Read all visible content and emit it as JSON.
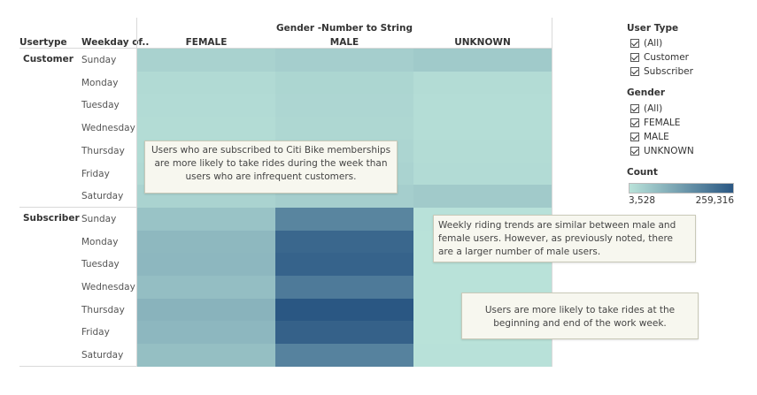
{
  "headers": {
    "col1": "Usertype",
    "col2": "Weekday of..",
    "gender_title": "Gender -Number to String",
    "genders": [
      "FEMALE",
      "MALE",
      "UNKNOWN"
    ]
  },
  "chart_data": {
    "type": "heatmap",
    "title": "",
    "x_header": "Gender -Number to String",
    "x": [
      "FEMALE",
      "MALE",
      "UNKNOWN"
    ],
    "groups": [
      {
        "usertype": "Customer",
        "days": [
          "Sunday",
          "Monday",
          "Tuesday",
          "Wednesday",
          "Thursday",
          "Friday",
          "Saturday"
        ],
        "values": [
          [
            33000,
            40000,
            48000
          ],
          [
            18000,
            26000,
            14000
          ],
          [
            16000,
            25000,
            12000
          ],
          [
            15000,
            24000,
            12000
          ],
          [
            17000,
            27000,
            14000
          ],
          [
            20000,
            31000,
            16000
          ],
          [
            31000,
            40000,
            47000
          ]
        ]
      },
      {
        "usertype": "Subscriber",
        "days": [
          "Sunday",
          "Monday",
          "Tuesday",
          "Wednesday",
          "Thursday",
          "Friday",
          "Saturday"
        ],
        "values": [
          [
            60000,
            175000,
            5000
          ],
          [
            80000,
            230000,
            4000
          ],
          [
            82000,
            237000,
            3700
          ],
          [
            70000,
            195000,
            3600
          ],
          [
            90000,
            259316,
            3528
          ],
          [
            82000,
            240000,
            3700
          ],
          [
            68000,
            180000,
            4500
          ]
        ]
      }
    ],
    "color_scale": {
      "min": 3528,
      "max": 259316,
      "low_color": "#b9e2d9",
      "high_color": "#2a5783"
    }
  },
  "legend": {
    "usertype": {
      "title": "User Type",
      "items": [
        "(All)",
        "Customer",
        "Subscriber"
      ]
    },
    "gender": {
      "title": "Gender",
      "items": [
        "(All)",
        "FEMALE",
        "MALE",
        "UNKNOWN"
      ]
    },
    "count": {
      "title": "Count",
      "min_label": "3,528",
      "max_label": "259,316"
    }
  },
  "annotations": {
    "note1": "Users who are subscribed to Citi Bike memberships are more likely to take rides during the week than users who are infrequent customers.",
    "note2": "Weekly riding trends are similar between male and female users. However, as previously noted, there are a larger number of male users.",
    "note3": "Users are more likely to take rides at the beginning and end of the work week."
  }
}
